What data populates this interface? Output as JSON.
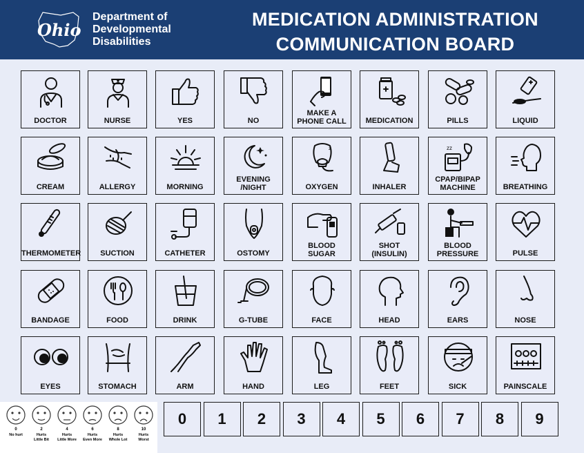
{
  "header": {
    "dept_lines": [
      "Department of",
      "Developmental",
      "Disabilities"
    ],
    "logo_text": "Ohio",
    "title_lines": [
      "MEDICATION ADMINISTRATION",
      "COMMUNICATION BOARD"
    ],
    "colors": {
      "banner": "#1b3f74",
      "background": "#e8ecf7"
    }
  },
  "cards": [
    {
      "label": "DOCTOR",
      "icon": "doctor-icon"
    },
    {
      "label": "NURSE",
      "icon": "nurse-icon"
    },
    {
      "label": "YES",
      "icon": "thumbs-up-icon"
    },
    {
      "label": "NO",
      "icon": "thumbs-down-icon"
    },
    {
      "label": "MAKE A\nPHONE CALL",
      "icon": "phone-icon"
    },
    {
      "label": "MEDICATION",
      "icon": "medication-icon"
    },
    {
      "label": "PILLS",
      "icon": "pills-icon"
    },
    {
      "label": "LIQUID",
      "icon": "liquid-icon"
    },
    {
      "label": "CREAM",
      "icon": "cream-icon"
    },
    {
      "label": "ALLERGY",
      "icon": "allergy-icon"
    },
    {
      "label": "MORNING",
      "icon": "sunrise-icon"
    },
    {
      "label": "EVENING\n/NIGHT",
      "icon": "moon-icon"
    },
    {
      "label": "OXYGEN",
      "icon": "oxygen-icon"
    },
    {
      "label": "INHALER",
      "icon": "inhaler-icon"
    },
    {
      "label": "CPAP/BIPAP\nMACHINE",
      "icon": "cpap-icon"
    },
    {
      "label": "BREATHING",
      "icon": "breathing-icon"
    },
    {
      "label": "THERMOMETER",
      "icon": "thermometer-icon"
    },
    {
      "label": "SUCTION",
      "icon": "suction-icon"
    },
    {
      "label": "CATHETER",
      "icon": "catheter-icon"
    },
    {
      "label": "OSTOMY",
      "icon": "ostomy-icon"
    },
    {
      "label": "BLOOD\nSUGAR",
      "icon": "glucose-meter-icon"
    },
    {
      "label": "SHOT\n(INSULIN)",
      "icon": "syringe-icon"
    },
    {
      "label": "BLOOD\nPRESSURE",
      "icon": "blood-pressure-icon"
    },
    {
      "label": "PULSE",
      "icon": "heartbeat-icon"
    },
    {
      "label": "BANDAGE",
      "icon": "bandage-icon"
    },
    {
      "label": "FOOD",
      "icon": "food-icon"
    },
    {
      "label": "DRINK",
      "icon": "drink-icon"
    },
    {
      "label": "G-TUBE",
      "icon": "g-tube-icon"
    },
    {
      "label": "FACE",
      "icon": "face-icon"
    },
    {
      "label": "HEAD",
      "icon": "head-icon"
    },
    {
      "label": "EARS",
      "icon": "ear-icon"
    },
    {
      "label": "NOSE",
      "icon": "nose-icon"
    },
    {
      "label": "EYES",
      "icon": "eyes-icon"
    },
    {
      "label": "STOMACH",
      "icon": "stomach-icon"
    },
    {
      "label": "ARM",
      "icon": "arm-icon"
    },
    {
      "label": "HAND",
      "icon": "hand-icon"
    },
    {
      "label": "LEG",
      "icon": "leg-icon"
    },
    {
      "label": "FEET",
      "icon": "feet-icon"
    },
    {
      "label": "SICK",
      "icon": "sick-icon"
    },
    {
      "label": "PAINSCALE",
      "icon": "painscale-icon"
    }
  ],
  "numbers": [
    "0",
    "1",
    "2",
    "3",
    "4",
    "5",
    "6",
    "7",
    "8",
    "9"
  ],
  "pain_scale": [
    {
      "value": "0",
      "caption": "No hurt"
    },
    {
      "value": "2",
      "caption": "Hurts\nLittle Bit"
    },
    {
      "value": "4",
      "caption": "Hurts\nLittle More"
    },
    {
      "value": "6",
      "caption": "Hurts\nEven More"
    },
    {
      "value": "8",
      "caption": "Hurts\nWhole Lot"
    },
    {
      "value": "10",
      "caption": "Hurts\nWorst"
    }
  ]
}
